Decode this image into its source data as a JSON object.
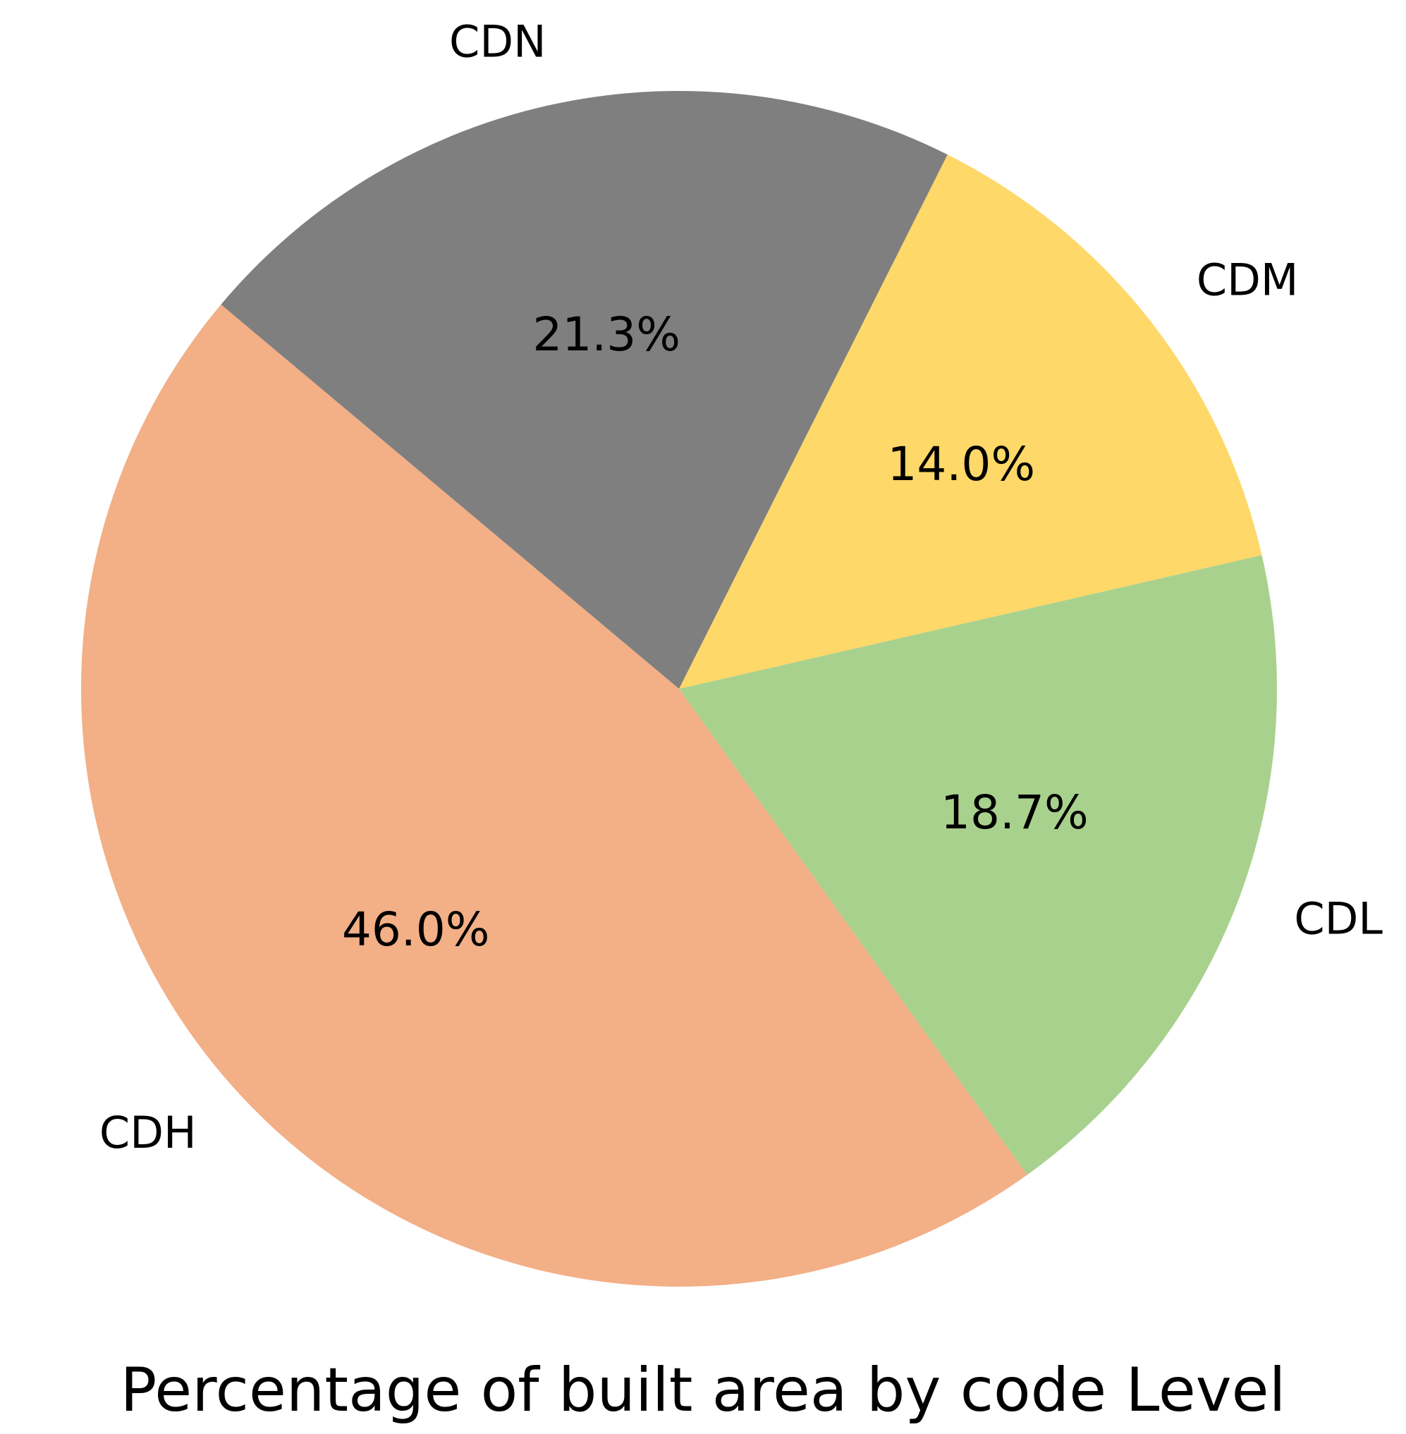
{
  "chart_data": {
    "type": "pie",
    "title": "Percentage of built area by code Level",
    "slices": [
      {
        "label": "CDH",
        "value": 46.0,
        "pct_label": "46.0%",
        "color": "#F3AF86"
      },
      {
        "label": "CDL",
        "value": 18.7,
        "pct_label": "18.7%",
        "color": "#A9D18E"
      },
      {
        "label": "CDM",
        "value": 14.0,
        "pct_label": "14.0%",
        "color": "#FED868"
      },
      {
        "label": "CDN",
        "value": 21.3,
        "pct_label": "21.3%",
        "color": "#7F7F7F"
      }
    ],
    "legend": "none"
  }
}
